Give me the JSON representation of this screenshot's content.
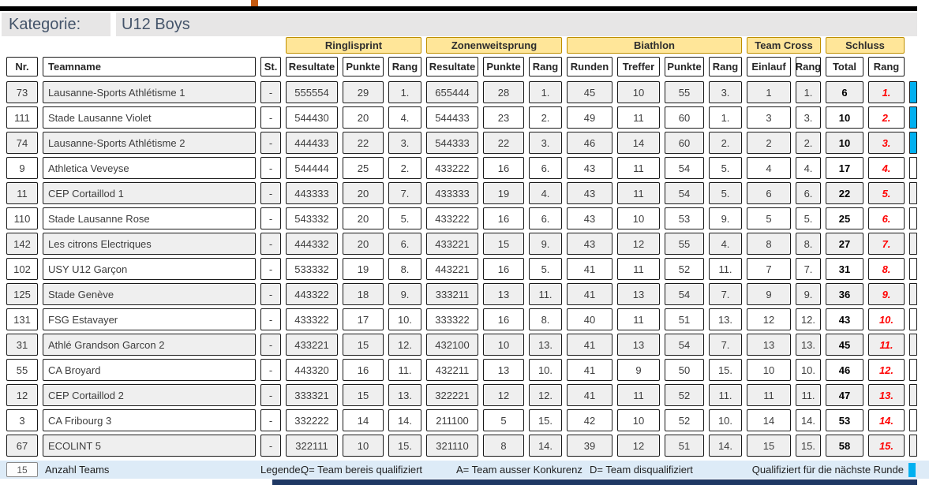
{
  "header": {
    "kategorie_label": "Kategorie:",
    "kategorie_value": "U12 Boys"
  },
  "table": {
    "group_headers": [
      {
        "label": "Ringlisprint"
      },
      {
        "label": "Zonenweitsprung"
      },
      {
        "label": "Biathlon"
      },
      {
        "label": "Team Cross"
      },
      {
        "label": "Schluss"
      }
    ],
    "columns": [
      "Nr.",
      "Teamname",
      "St.",
      "Resultate",
      "Punkte",
      "Rang",
      "Resultate",
      "Punkte",
      "Rang",
      "Runden",
      "Treffer",
      "Punkte",
      "Rang",
      "Einlauf",
      "Rang",
      "Total",
      "Rang"
    ],
    "rows": [
      {
        "nr": "73",
        "team": "Lausanne-Sports Athlétisme 1",
        "st": "-",
        "r1_res": "555554",
        "r1_pts": "29",
        "r1_rang": "1.",
        "z_res": "655444",
        "z_pts": "28",
        "z_rang": "1.",
        "b_runden": "45",
        "b_treffer": "10",
        "b_pts": "55",
        "b_rang": "3.",
        "tc_einlauf": "1",
        "tc_rang": "1.",
        "total": "6",
        "rang": "1.",
        "qualified": true
      },
      {
        "nr": "111",
        "team": "Stade Lausanne Violet",
        "st": "-",
        "r1_res": "544430",
        "r1_pts": "20",
        "r1_rang": "4.",
        "z_res": "544433",
        "z_pts": "23",
        "z_rang": "2.",
        "b_runden": "49",
        "b_treffer": "11",
        "b_pts": "60",
        "b_rang": "1.",
        "tc_einlauf": "3",
        "tc_rang": "3.",
        "total": "10",
        "rang": "2.",
        "qualified": true
      },
      {
        "nr": "74",
        "team": "Lausanne-Sports Athlétisme 2",
        "st": "-",
        "r1_res": "444433",
        "r1_pts": "22",
        "r1_rang": "3.",
        "z_res": "544333",
        "z_pts": "22",
        "z_rang": "3.",
        "b_runden": "46",
        "b_treffer": "14",
        "b_pts": "60",
        "b_rang": "2.",
        "tc_einlauf": "2",
        "tc_rang": "2.",
        "total": "10",
        "rang": "3.",
        "qualified": true
      },
      {
        "nr": "9",
        "team": "Athletica Veveyse",
        "st": "-",
        "r1_res": "544444",
        "r1_pts": "25",
        "r1_rang": "2.",
        "z_res": "433222",
        "z_pts": "16",
        "z_rang": "6.",
        "b_runden": "43",
        "b_treffer": "11",
        "b_pts": "54",
        "b_rang": "5.",
        "tc_einlauf": "4",
        "tc_rang": "4.",
        "total": "17",
        "rang": "4.",
        "qualified": false
      },
      {
        "nr": "11",
        "team": "CEP Cortaillod 1",
        "st": "-",
        "r1_res": "443333",
        "r1_pts": "20",
        "r1_rang": "7.",
        "z_res": "433333",
        "z_pts": "19",
        "z_rang": "4.",
        "b_runden": "43",
        "b_treffer": "11",
        "b_pts": "54",
        "b_rang": "5.",
        "tc_einlauf": "6",
        "tc_rang": "6.",
        "total": "22",
        "rang": "5.",
        "qualified": false
      },
      {
        "nr": "110",
        "team": "Stade Lausanne Rose",
        "st": "-",
        "r1_res": "543332",
        "r1_pts": "20",
        "r1_rang": "5.",
        "z_res": "433222",
        "z_pts": "16",
        "z_rang": "6.",
        "b_runden": "43",
        "b_treffer": "10",
        "b_pts": "53",
        "b_rang": "9.",
        "tc_einlauf": "5",
        "tc_rang": "5.",
        "total": "25",
        "rang": "6.",
        "qualified": false
      },
      {
        "nr": "142",
        "team": "Les citrons Electriques",
        "st": "-",
        "r1_res": "444332",
        "r1_pts": "20",
        "r1_rang": "6.",
        "z_res": "433221",
        "z_pts": "15",
        "z_rang": "9.",
        "b_runden": "43",
        "b_treffer": "12",
        "b_pts": "55",
        "b_rang": "4.",
        "tc_einlauf": "8",
        "tc_rang": "8.",
        "total": "27",
        "rang": "7.",
        "qualified": false
      },
      {
        "nr": "102",
        "team": "USY U12 Garçon",
        "st": "-",
        "r1_res": "533332",
        "r1_pts": "19",
        "r1_rang": "8.",
        "z_res": "443221",
        "z_pts": "16",
        "z_rang": "5.",
        "b_runden": "41",
        "b_treffer": "11",
        "b_pts": "52",
        "b_rang": "11.",
        "tc_einlauf": "7",
        "tc_rang": "7.",
        "total": "31",
        "rang": "8.",
        "qualified": false
      },
      {
        "nr": "125",
        "team": "Stade Genève",
        "st": "-",
        "r1_res": "443322",
        "r1_pts": "18",
        "r1_rang": "9.",
        "z_res": "333211",
        "z_pts": "13",
        "z_rang": "11.",
        "b_runden": "41",
        "b_treffer": "13",
        "b_pts": "54",
        "b_rang": "7.",
        "tc_einlauf": "9",
        "tc_rang": "9.",
        "total": "36",
        "rang": "9.",
        "qualified": false
      },
      {
        "nr": "131",
        "team": "FSG Estavayer",
        "st": "-",
        "r1_res": "433322",
        "r1_pts": "17",
        "r1_rang": "10.",
        "z_res": "333322",
        "z_pts": "16",
        "z_rang": "8.",
        "b_runden": "40",
        "b_treffer": "11",
        "b_pts": "51",
        "b_rang": "13.",
        "tc_einlauf": "12",
        "tc_rang": "12.",
        "total": "43",
        "rang": "10.",
        "qualified": false
      },
      {
        "nr": "31",
        "team": "Athlé Grandson Garcon  2",
        "st": "-",
        "r1_res": "433221",
        "r1_pts": "15",
        "r1_rang": "12.",
        "z_res": "432100",
        "z_pts": "10",
        "z_rang": "13.",
        "b_runden": "41",
        "b_treffer": "13",
        "b_pts": "54",
        "b_rang": "7.",
        "tc_einlauf": "13",
        "tc_rang": "13.",
        "total": "45",
        "rang": "11.",
        "qualified": false
      },
      {
        "nr": "55",
        "team": "CA Broyard",
        "st": "-",
        "r1_res": "443320",
        "r1_pts": "16",
        "r1_rang": "11.",
        "z_res": "432211",
        "z_pts": "13",
        "z_rang": "10.",
        "b_runden": "41",
        "b_treffer": "9",
        "b_pts": "50",
        "b_rang": "15.",
        "tc_einlauf": "10",
        "tc_rang": "10.",
        "total": "46",
        "rang": "12.",
        "qualified": false
      },
      {
        "nr": "12",
        "team": "CEP Cortaillod 2",
        "st": "-",
        "r1_res": "333321",
        "r1_pts": "15",
        "r1_rang": "13.",
        "z_res": "322221",
        "z_pts": "12",
        "z_rang": "12.",
        "b_runden": "41",
        "b_treffer": "11",
        "b_pts": "52",
        "b_rang": "11.",
        "tc_einlauf": "11",
        "tc_rang": "11.",
        "total": "47",
        "rang": "13.",
        "qualified": false
      },
      {
        "nr": "3",
        "team": "CA Fribourg 3",
        "st": "-",
        "r1_res": "332222",
        "r1_pts": "14",
        "r1_rang": "14.",
        "z_res": "211100",
        "z_pts": "5",
        "z_rang": "15.",
        "b_runden": "42",
        "b_treffer": "10",
        "b_pts": "52",
        "b_rang": "10.",
        "tc_einlauf": "14",
        "tc_rang": "14.",
        "total": "53",
        "rang": "14.",
        "qualified": false
      },
      {
        "nr": "67",
        "team": "ECOLINT 5",
        "st": "-",
        "r1_res": "322111",
        "r1_pts": "10",
        "r1_rang": "15.",
        "z_res": "321110",
        "z_pts": "8",
        "z_rang": "14.",
        "b_runden": "39",
        "b_treffer": "12",
        "b_pts": "51",
        "b_rang": "14.",
        "tc_einlauf": "15",
        "tc_rang": "15.",
        "total": "58",
        "rang": "15.",
        "qualified": false
      }
    ]
  },
  "footer": {
    "team_count": "15",
    "team_count_label": "Anzahl Teams",
    "legend_label": "Legende:",
    "legend_items": [
      "Q= Team bereis qualifiziert",
      "A= Team ausser Konkurenz",
      "D= Team disqualifiziert"
    ],
    "qualified_label": "Qualifiziert für die nächste Runde"
  },
  "colors": {
    "group_header_bg": "#FFE699",
    "group_header_border": "#BF8F00",
    "qualified_marker": "#00B0F0",
    "final_rank_text": "#FF0000",
    "footer_band_bg": "#DDEBF7",
    "kategorie_text": "#44546A",
    "row_shade": "#EFEFEF",
    "top_bar": "#000000",
    "bottom_bar": "#1F3864",
    "orange_mark": "#C55A11"
  }
}
